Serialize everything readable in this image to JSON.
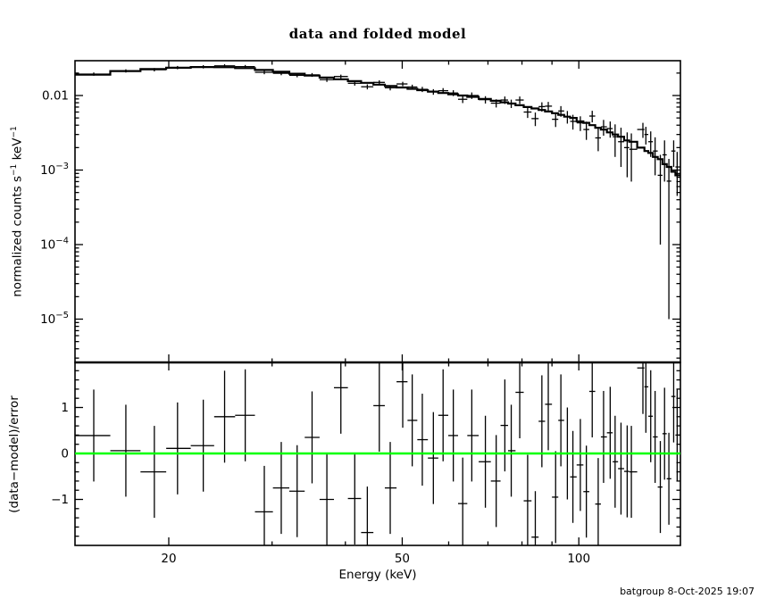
{
  "title": "data and folded model",
  "footer": "batgroup  8-Oct-2025 19:07",
  "colors": {
    "model": "#000000",
    "data": "#000000",
    "zero_line": "#00ff00",
    "background": "#ffffff"
  },
  "axes": {
    "x": {
      "label": "Energy (keV)",
      "scale": "log",
      "range": [
        13.84,
        149.1
      ],
      "major_ticks": [
        {
          "v": 20,
          "label": "20"
        },
        {
          "v": 50,
          "label": "50"
        },
        {
          "v": 100,
          "label": "100"
        }
      ],
      "minor_ticks": [
        30,
        40,
        60,
        70,
        80,
        90
      ]
    },
    "y_top": {
      "label_parts": [
        {
          "t": "normalized counts s"
        },
        {
          "t": "−1",
          "sup": true
        },
        {
          "t": " keV"
        },
        {
          "t": "−1",
          "sup": true
        }
      ],
      "scale": "log",
      "range": [
        2.6e-06,
        0.0293
      ],
      "major_ticks": [
        {
          "v": 0.01,
          "base": "0.01"
        },
        {
          "v": 0.001,
          "base": "10",
          "exp": "−3"
        },
        {
          "v": 0.0001,
          "base": "10",
          "exp": "−4"
        },
        {
          "v": 1e-05,
          "base": "10",
          "exp": "−5"
        }
      ]
    },
    "y_bottom": {
      "label_parts": [
        {
          "t": "(data−model)/error"
        }
      ],
      "scale": "linear",
      "range": [
        -2.02,
        1.98
      ],
      "major_ticks": [
        {
          "v": 1,
          "base": "1"
        },
        {
          "v": 0,
          "base": "0"
        },
        {
          "v": -1,
          "base": "−1"
        }
      ],
      "minor_step": 0.2
    }
  },
  "chart_data": {
    "type": "scatter+line",
    "description": "XSPEC-style two-panel spectral fit: top = data with errors and folded model histogram (log-log), bottom = (data-model)/error residuals with zero line (semilog-x)",
    "title": "data and folded model",
    "xlabel": "Energy (keV)",
    "ylabel_top": "normalized counts s^-1 keV^-1",
    "ylabel_bottom": "(data-model)/error",
    "xlim": [
      13.84,
      149.1
    ],
    "ylim_top": [
      2.6e-06,
      0.0293
    ],
    "ylim_bottom": [
      -2.02,
      1.98
    ],
    "grid": false,
    "legend": false,
    "residual_err": 1.0,
    "energy_kev": [
      14.9,
      16.9,
      18.9,
      20.7,
      22.9,
      24.9,
      27.0,
      29.1,
      31.1,
      33.1,
      35.1,
      37.2,
      39.3,
      41.5,
      43.6,
      45.7,
      47.7,
      50.1,
      52.0,
      54.1,
      56.5,
      58.7,
      61.1,
      63.4,
      65.7,
      69.3,
      72.3,
      74.8,
      76.7,
      79.3,
      81.8,
      84.3,
      86.5,
      88.7,
      91.3,
      93.2,
      95.6,
      97.7,
      100.6,
      103.0,
      105.4,
      107.9,
      110.2,
      113.1,
      115.3,
      118.0,
      120.9,
      122.9,
      128.6,
      130.1,
      132.6,
      134.9,
      137.7,
      140.0,
      142.4,
      145.1,
      147.1
    ],
    "counts": [
      0.0194,
      0.0214,
      0.0222,
      0.0237,
      0.0243,
      0.025,
      0.0244,
      0.0205,
      0.0199,
      0.0187,
      0.0189,
      0.0163,
      0.018,
      0.0146,
      0.0131,
      0.015,
      0.0127,
      0.0143,
      0.013,
      0.0121,
      0.0112,
      0.0116,
      0.0108,
      0.0089,
      0.01,
      0.0088,
      0.0079,
      0.0087,
      0.0078,
      0.0087,
      0.006,
      0.0049,
      0.0071,
      0.0072,
      0.0048,
      0.0062,
      0.0052,
      0.0045,
      0.0043,
      0.0035,
      0.0053,
      0.0027,
      0.0038,
      0.0036,
      0.0028,
      0.0024,
      0.002,
      0.0019,
      0.0035,
      0.003,
      0.0024,
      0.0018,
      0.00085,
      0.0016,
      0.00071,
      0.0018,
      0.0011
    ],
    "counts_err": [
      0.00098,
      0.00107,
      0.00116,
      0.0012,
      0.00125,
      0.00127,
      0.00126,
      0.00121,
      0.00119,
      0.00114,
      0.00111,
      0.00108,
      0.00106,
      0.00103,
      0.00101,
      0.00099,
      0.00098,
      0.00097,
      0.00097,
      0.00097,
      0.00097,
      0.00097,
      0.00098,
      0.00098,
      0.00099,
      0.00099,
      0.00099,
      0.001,
      0.001,
      0.001,
      0.001,
      0.00101,
      0.00101,
      0.00101,
      0.00102,
      0.00101,
      0.001,
      0.00101,
      0.00096,
      0.00096,
      0.00094,
      0.00091,
      0.00091,
      0.00088,
      0.0013,
      0.0013,
      0.0012,
      0.0012,
      0.0008,
      0.0008,
      0.0009,
      0.00095,
      0.00075,
      0.0009,
      0.0007,
      0.0007,
      0.00065
    ],
    "model": [
      0.019,
      0.0213,
      0.0227,
      0.0236,
      0.0241,
      0.024,
      0.0233,
      0.022,
      0.0208,
      0.0196,
      0.0185,
      0.0174,
      0.0165,
      0.0156,
      0.0148,
      0.014,
      0.0134,
      0.0128,
      0.0123,
      0.0118,
      0.0113,
      0.0108,
      0.0104,
      0.01,
      0.0096,
      0.009,
      0.0085,
      0.0081,
      0.0078,
      0.0074,
      0.007,
      0.0067,
      0.0064,
      0.0061,
      0.0058,
      0.0055,
      0.0052,
      0.005,
      0.0045,
      0.0043,
      0.004,
      0.0037,
      0.0035,
      0.0032,
      0.003,
      0.0028,
      0.0025,
      0.0024,
      0.002,
      0.0018,
      0.0017,
      0.0015,
      0.0014,
      0.0012,
      0.0011,
      0.00095,
      0.00085
    ],
    "residuals_sigma": [
      0.39,
      0.06,
      -0.4,
      0.11,
      0.17,
      0.8,
      0.83,
      -1.27,
      -0.75,
      -0.82,
      0.35,
      -1.0,
      1.43,
      -0.98,
      -1.72,
      1.04,
      -0.75,
      1.56,
      0.72,
      0.3,
      -0.1,
      0.83,
      0.39,
      -1.09,
      0.39,
      -0.18,
      -0.6,
      0.61,
      0.06,
      1.33,
      -1.03,
      -1.82,
      0.7,
      1.07,
      -0.95,
      0.72,
      0.0,
      -0.51,
      -0.25,
      -0.83,
      1.35,
      -1.1,
      0.36,
      0.45,
      -0.18,
      -0.33,
      -0.39,
      -0.4,
      1.86,
      1.45,
      0.81,
      0.36,
      -0.73,
      0.43,
      -0.55,
      1.24,
      0.4
    ]
  }
}
